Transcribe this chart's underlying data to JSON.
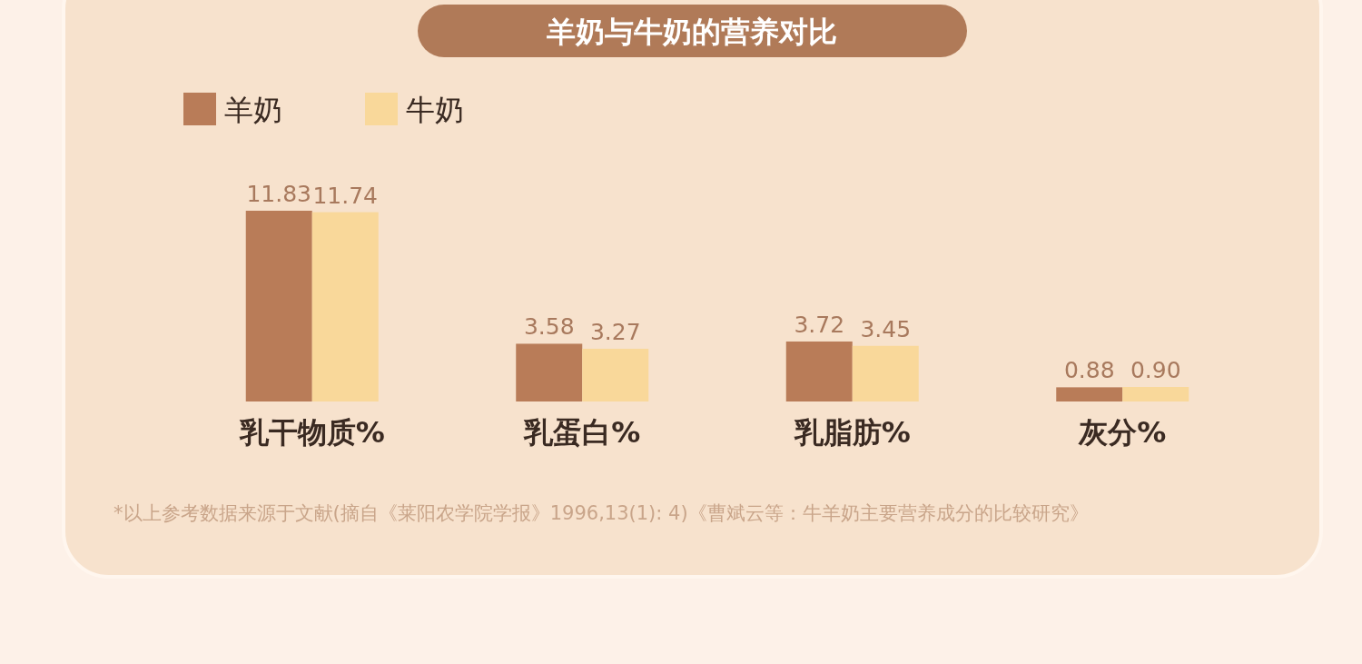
{
  "chart_data": {
    "type": "bar",
    "title": "羊奶与牛奶的营养对比",
    "categories": [
      "乳干物质%",
      "乳蛋白%",
      "乳脂肪%",
      "灰分%"
    ],
    "series": [
      {
        "name": "羊奶",
        "color": "#b97c58",
        "values": [
          11.83,
          3.58,
          3.72,
          0.88
        ],
        "value_labels": [
          "11.83",
          "3.58",
          "3.72",
          "0.88"
        ]
      },
      {
        "name": "牛奶",
        "color": "#f9d89a",
        "values": [
          11.74,
          3.27,
          3.45,
          0.9
        ],
        "value_labels": [
          "11.74",
          "3.27",
          "3.45",
          "0.90"
        ]
      }
    ],
    "legend": "top left",
    "tick_labels": "x",
    "annotations": [
      "*以上参考数据来源于文献(摘自《莱阳农学院学报》1996,13(1): 4)《曹斌云等：牛羊奶主要营养成分的比较研究》"
    ]
  }
}
